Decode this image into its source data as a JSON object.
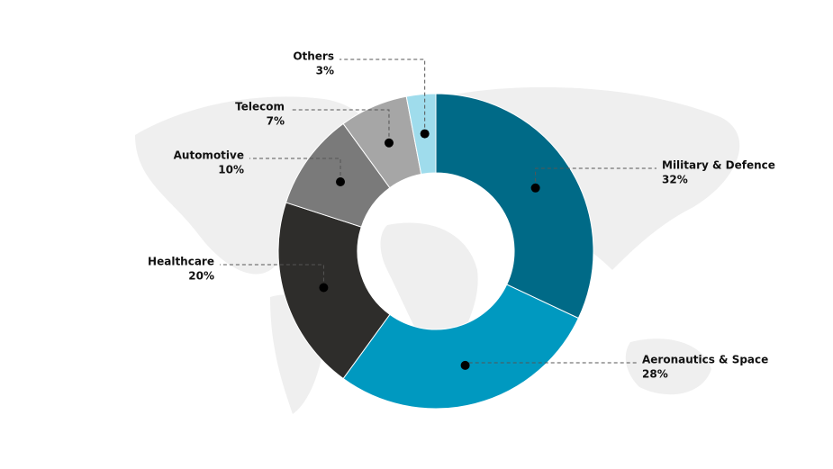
{
  "chart_data": {
    "type": "donut",
    "categories": [
      "Military & Defence",
      "Aeronautics & Space",
      "Healthcare",
      "Automotive",
      "Telecom",
      "Others"
    ],
    "values": [
      32,
      28,
      20,
      10,
      7,
      3
    ],
    "value_labels": [
      "32%",
      "28%",
      "20%",
      "10%",
      "7%",
      "3%"
    ],
    "colors": [
      "#006a87",
      "#0099c0",
      "#2e2d2b",
      "#7a7a7a",
      "#a6a6a6",
      "#9fdcec"
    ]
  }
}
